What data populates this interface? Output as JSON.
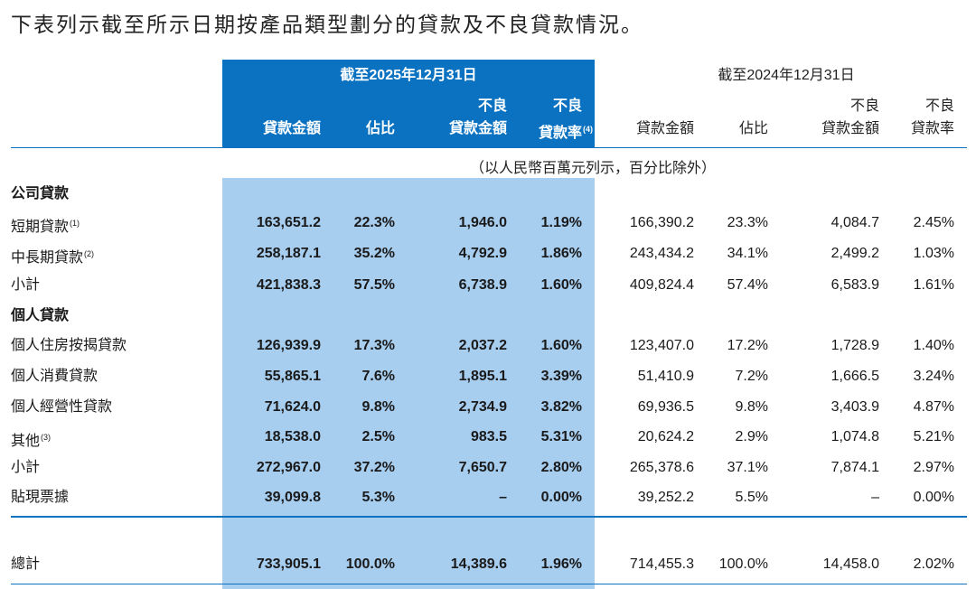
{
  "intro": "下表列示截至所示日期按產品類型劃分的貸款及不良貸款情況。",
  "header": {
    "period_2025": "截至2025年12月31日",
    "period_2024": "截至2024年12月31日",
    "col_loan_amount": "貸款金額",
    "col_share": "佔比",
    "col_npl_top": "不良",
    "col_npl_amount_bottom": "貸款金額",
    "col_npl_ratio_bottom": "貸款率",
    "npl_ratio_note": "(4)"
  },
  "unit_note": "（以人民幣百萬元列示，百分比除外）",
  "rows": [
    {
      "label": "公司貸款",
      "section": true
    },
    {
      "label": "短期貸款",
      "note": "(1)",
      "v2025": [
        "163,651.2",
        "22.3%",
        "1,946.0",
        "1.19%"
      ],
      "v2024": [
        "166,390.2",
        "23.3%",
        "4,084.7",
        "2.45%"
      ]
    },
    {
      "label": "中長期貸款",
      "note": "(2)",
      "v2025": [
        "258,187.1",
        "35.2%",
        "4,792.9",
        "1.86%"
      ],
      "v2024": [
        "243,434.2",
        "34.1%",
        "2,499.2",
        "1.03%"
      ]
    },
    {
      "label": "小計",
      "v2025": [
        "421,838.3",
        "57.5%",
        "6,738.9",
        "1.60%"
      ],
      "v2024": [
        "409,824.4",
        "57.4%",
        "6,583.9",
        "1.61%"
      ]
    },
    {
      "label": "個人貸款",
      "section": true
    },
    {
      "label": "個人住房按揭貸款",
      "v2025": [
        "126,939.9",
        "17.3%",
        "2,037.2",
        "1.60%"
      ],
      "v2024": [
        "123,407.0",
        "17.2%",
        "1,728.9",
        "1.40%"
      ]
    },
    {
      "label": "個人消費貸款",
      "v2025": [
        "55,865.1",
        "7.6%",
        "1,895.1",
        "3.39%"
      ],
      "v2024": [
        "51,410.9",
        "7.2%",
        "1,666.5",
        "3.24%"
      ]
    },
    {
      "label": "個人經營性貸款",
      "v2025": [
        "71,624.0",
        "9.8%",
        "2,734.9",
        "3.82%"
      ],
      "v2024": [
        "69,936.5",
        "9.8%",
        "3,403.9",
        "4.87%"
      ]
    },
    {
      "label": "其他",
      "note": "(3)",
      "v2025": [
        "18,538.0",
        "2.5%",
        "983.5",
        "5.31%"
      ],
      "v2024": [
        "20,624.2",
        "2.9%",
        "1,074.8",
        "5.21%"
      ]
    },
    {
      "label": "小計",
      "v2025": [
        "272,967.0",
        "37.2%",
        "7,650.7",
        "2.80%"
      ],
      "v2024": [
        "265,378.6",
        "37.1%",
        "7,874.1",
        "2.97%"
      ]
    },
    {
      "label": "貼現票據",
      "v2025": [
        "39,099.8",
        "5.3%",
        "–",
        "0.00%"
      ],
      "v2024": [
        "39,252.2",
        "5.5%",
        "–",
        "0.00%"
      ]
    }
  ],
  "total": {
    "label": "總計",
    "v2025": [
      "733,905.1",
      "100.0%",
      "14,389.6",
      "1.96%"
    ],
    "v2024": [
      "714,455.3",
      "100.0%",
      "14,458.0",
      "2.02%"
    ]
  }
}
